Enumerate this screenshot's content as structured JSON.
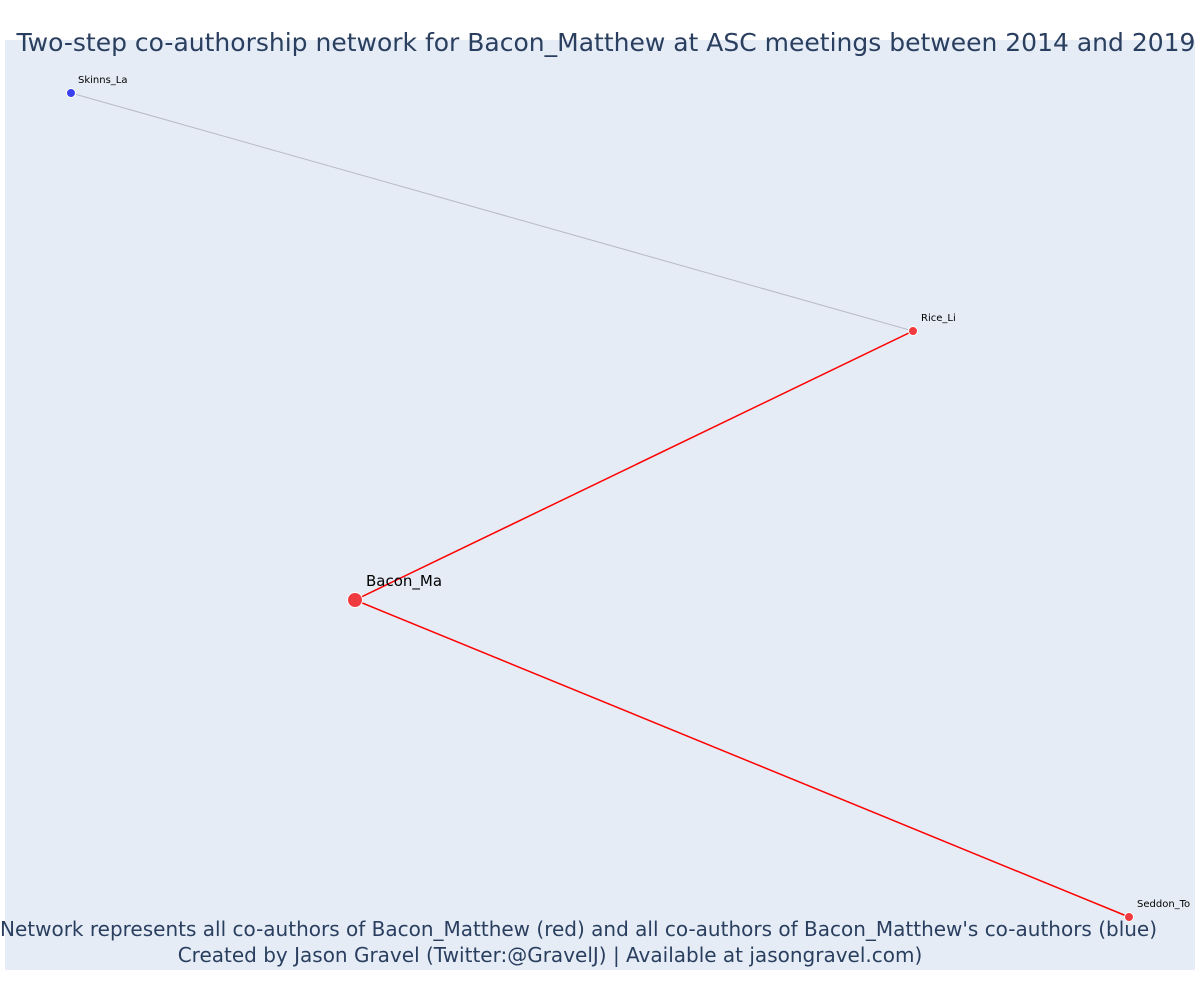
{
  "title": "Two-step co-authorship network for Bacon_Matthew at ASC meetings between 2014 and 2019",
  "caption": {
    "line1": "Network represents all co-authors of Bacon_Matthew (red) and all co-authors of Bacon_Matthew's co-authors (blue)",
    "line2": "Created by Jason Gravel (Twitter:@GravelJ) | Available at jasongravel.com)"
  },
  "colors": {
    "plot_background": "#e5ecf6",
    "coauthor_node": "#ef3a3f",
    "second_step_node": "#3a3fef",
    "direct_edge": "#ff0000",
    "second_step_edge": "#b7b9c8",
    "text": "#2a3f5f"
  },
  "chart_data": {
    "type": "network",
    "nodes": [
      {
        "id": "Bacon_Ma",
        "label": "Bacon_Ma",
        "group": "focal"
      },
      {
        "id": "Rice_Li",
        "label": "Rice_Li",
        "group": "coauthor"
      },
      {
        "id": "Seddon_To",
        "label": "Seddon_To",
        "group": "coauthor"
      },
      {
        "id": "Skinns_La",
        "label": "Skinns_La",
        "group": "second-step"
      }
    ],
    "edges": [
      {
        "source": "Bacon_Ma",
        "target": "Rice_Li",
        "type": "direct"
      },
      {
        "source": "Bacon_Ma",
        "target": "Seddon_To",
        "type": "direct"
      },
      {
        "source": "Rice_Li",
        "target": "Skinns_La",
        "type": "second-step"
      }
    ]
  }
}
